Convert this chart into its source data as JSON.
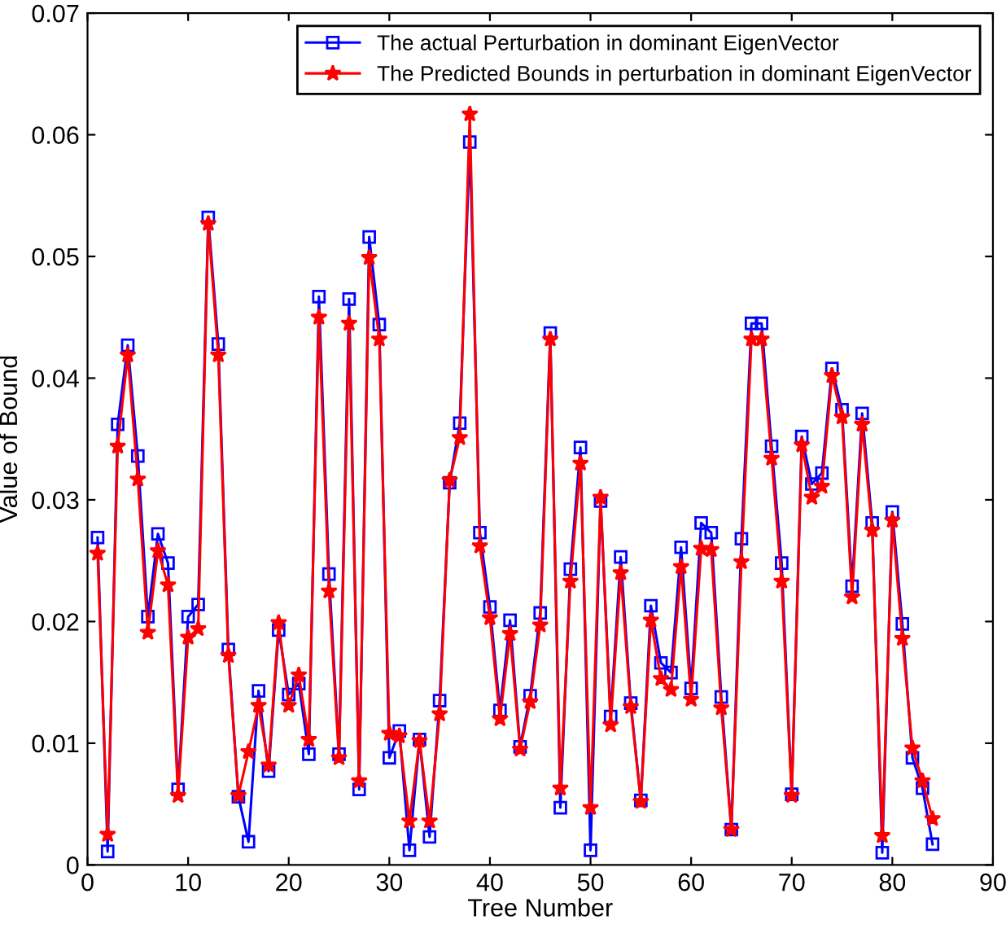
{
  "chart_data": {
    "type": "line",
    "xlabel": "Tree Number",
    "ylabel": "Value of Bound",
    "x": [
      1,
      2,
      3,
      4,
      5,
      6,
      7,
      8,
      9,
      10,
      11,
      12,
      13,
      14,
      15,
      16,
      17,
      18,
      19,
      20,
      21,
      22,
      23,
      24,
      25,
      26,
      27,
      28,
      29,
      30,
      31,
      32,
      33,
      34,
      35,
      36,
      37,
      38,
      39,
      40,
      41,
      42,
      43,
      44,
      45,
      46,
      47,
      48,
      49,
      50,
      51,
      52,
      53,
      54,
      55,
      56,
      57,
      58,
      59,
      60,
      61,
      62,
      63,
      64,
      65,
      66,
      67,
      68,
      69,
      70,
      71,
      72,
      73,
      74,
      75,
      76,
      77,
      78,
      79,
      80,
      81,
      82,
      83,
      84
    ],
    "series": [
      {
        "name": "The actual Perturbation in dominant EigenVector",
        "color": "#0000ff",
        "marker": "square",
        "values": [
          0.0269,
          0.0011,
          0.0362,
          0.0427,
          0.0336,
          0.0204,
          0.0272,
          0.0248,
          0.0062,
          0.0204,
          0.0214,
          0.0532,
          0.0428,
          0.0177,
          0.0056,
          0.0019,
          0.0143,
          0.0077,
          0.0193,
          0.014,
          0.0149,
          0.0091,
          0.0467,
          0.0239,
          0.0091,
          0.0465,
          0.0062,
          0.0516,
          0.0444,
          0.0088,
          0.011,
          0.0012,
          0.0103,
          0.0023,
          0.0135,
          0.0314,
          0.0363,
          0.0594,
          0.0273,
          0.0212,
          0.0127,
          0.0201,
          0.0097,
          0.0139,
          0.0207,
          0.0437,
          0.0047,
          0.0243,
          0.0343,
          0.0012,
          0.0299,
          0.0122,
          0.0253,
          0.0133,
          0.0053,
          0.0213,
          0.0166,
          0.0158,
          0.0261,
          0.0145,
          0.0281,
          0.0273,
          0.0138,
          0.0029,
          0.0268,
          0.0445,
          0.0445,
          0.0344,
          0.0248,
          0.0058,
          0.0352,
          0.0313,
          0.0322,
          0.0408,
          0.0374,
          0.0229,
          0.0371,
          0.0281,
          0.001,
          0.029,
          0.0198,
          0.0088,
          0.0063,
          0.0017
        ]
      },
      {
        "name": "The Predicted Bounds in perturbation in dominant EigenVector",
        "color": "#ff0000",
        "marker": "star",
        "values": [
          0.0256,
          0.0025,
          0.0344,
          0.0419,
          0.0317,
          0.0191,
          0.0258,
          0.023,
          0.0057,
          0.0187,
          0.0194,
          0.0527,
          0.0419,
          0.0172,
          0.0057,
          0.0093,
          0.0131,
          0.0082,
          0.0199,
          0.0131,
          0.0156,
          0.0103,
          0.045,
          0.0225,
          0.0088,
          0.0445,
          0.0069,
          0.0499,
          0.0432,
          0.0108,
          0.0106,
          0.0036,
          0.0102,
          0.0036,
          0.0124,
          0.0316,
          0.0351,
          0.0617,
          0.0262,
          0.0203,
          0.012,
          0.019,
          0.0095,
          0.0134,
          0.0197,
          0.0432,
          0.0063,
          0.0233,
          0.033,
          0.0047,
          0.0302,
          0.0115,
          0.024,
          0.013,
          0.0052,
          0.0201,
          0.0153,
          0.0144,
          0.0245,
          0.0136,
          0.026,
          0.0259,
          0.0129,
          0.0029,
          0.0249,
          0.0432,
          0.0432,
          0.0334,
          0.0233,
          0.0057,
          0.0345,
          0.0302,
          0.0311,
          0.0402,
          0.0368,
          0.022,
          0.0362,
          0.0275,
          0.0024,
          0.0283,
          0.0186,
          0.0096,
          0.0069,
          0.0038
        ]
      }
    ],
    "xlim": [
      0,
      90
    ],
    "xticks": [
      0,
      10,
      20,
      30,
      40,
      50,
      60,
      70,
      80,
      90
    ],
    "ylim": [
      0,
      0.07
    ],
    "yticks": [
      0,
      0.01,
      0.02,
      0.03,
      0.04,
      0.05,
      0.06,
      0.07
    ],
    "legend": "top right",
    "grid": false,
    "line_style": "solid"
  }
}
